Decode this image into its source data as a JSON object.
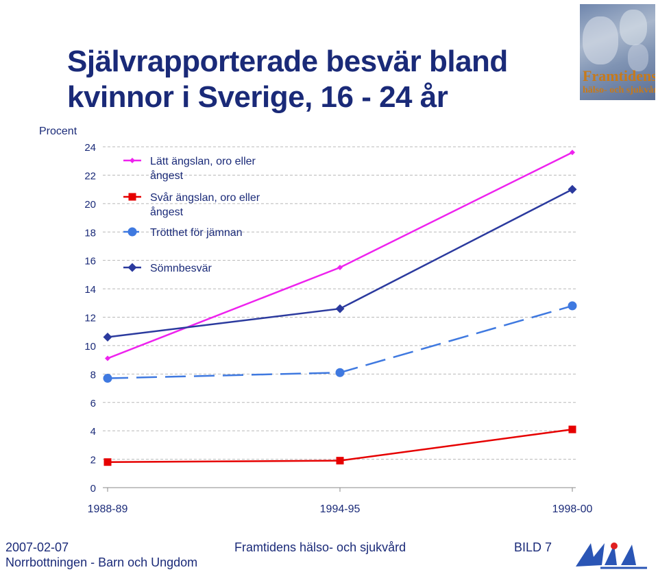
{
  "title_line1": "Självrapporterade besvär bland",
  "title_line2": "kvinnor i Sverige,  16 - 24 år",
  "logo": {
    "brand_line1": "Framtidens",
    "brand_line2": "hälso- och sjukvård"
  },
  "footer": {
    "date": "2007-02-07",
    "org": "Norrbottningen - Barn och Ungdom",
    "center": "Framtidens hälso- och sjukvård",
    "slide": "BILD 7"
  },
  "colors": {
    "series_magenta": "#ee22ee",
    "series_red": "#e60000",
    "series_lightblue": "#3f79e0",
    "series_darkblue": "#2b3a9e",
    "title": "#1a2a78"
  },
  "chart_data": {
    "type": "line",
    "ylabel": "Procent",
    "xlabel": "",
    "categories": [
      "1988-89",
      "1994-95",
      "1998-00"
    ],
    "ylim": [
      0,
      24
    ],
    "yticks": [
      0,
      2,
      4,
      6,
      8,
      10,
      12,
      14,
      16,
      18,
      20,
      22,
      24
    ],
    "grid": "horizontal dashed",
    "legend": "top-left",
    "series": [
      {
        "name": "Lätt ängslan, oro eller ångest",
        "legend_lines": [
          "Lätt ängslan, oro eller",
          "ångest"
        ],
        "values": [
          9.1,
          15.5,
          23.6
        ],
        "color": "#ee22ee",
        "marker": "small-diamond",
        "dash": "solid"
      },
      {
        "name": "Svår ängslan, oro eller ångest",
        "legend_lines": [
          "Svår ängslan, oro eller",
          "ångest"
        ],
        "values": [
          1.8,
          1.9,
          4.1
        ],
        "color": "#e60000",
        "marker": "square",
        "dash": "solid"
      },
      {
        "name": "Trötthet för jämnan",
        "legend_lines": [
          "Trötthet för jämnan"
        ],
        "values": [
          7.7,
          8.1,
          12.8
        ],
        "color": "#3f79e0",
        "marker": "circle",
        "dash": "dashed"
      },
      {
        "name": "Sömnbesvär",
        "legend_lines": [
          "Sömnbesvär"
        ],
        "values": [
          10.6,
          12.6,
          21.0
        ],
        "color": "#2b3a9e",
        "marker": "diamond",
        "dash": "solid"
      }
    ]
  }
}
